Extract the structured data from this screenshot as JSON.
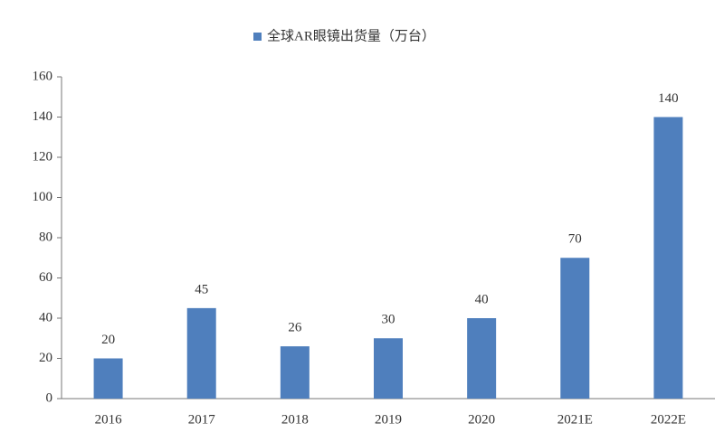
{
  "chart_data": {
    "type": "bar",
    "categories": [
      "2016",
      "2017",
      "2018",
      "2019",
      "2020",
      "2021E",
      "2022E"
    ],
    "series": [
      {
        "name": "全球AR眼镜出货量（万台）",
        "color": "#4f7fbd",
        "values": [
          20,
          45,
          26,
          30,
          40,
          70,
          140
        ]
      }
    ],
    "ylim": [
      0,
      160
    ],
    "yticks": [
      0,
      20,
      40,
      60,
      80,
      100,
      120,
      140,
      160
    ],
    "grid": false,
    "legend": "top",
    "data_labels": true
  }
}
